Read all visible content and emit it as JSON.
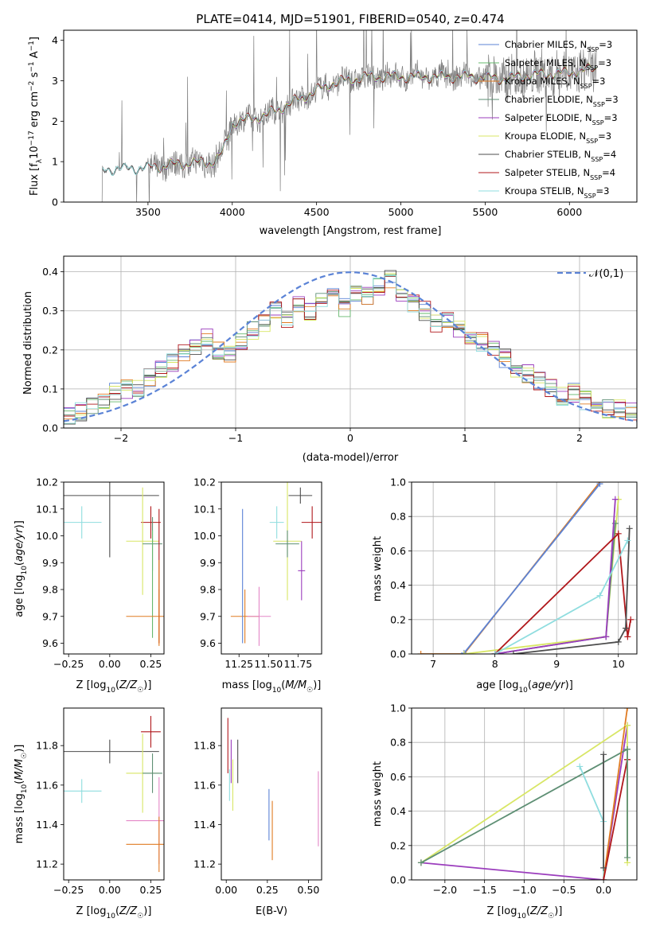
{
  "colors": {
    "Chabrier MILES": "#5b83d6",
    "Salpeter MILES": "#66b86e",
    "Kroupa MILES": "#e07b22",
    "Chabrier ELODIE": "#5e8f74",
    "Salpeter ELODIE": "#9b3dbd",
    "Kroupa ELODIE": "#d8e665",
    "Chabrier STELIB": "#4d4d4d",
    "Salpeter STELIB": "#b0171b",
    "Kroupa STELIB": "#8fdddf",
    "extra": "#e487c7",
    "gauss": "#5b83d6"
  },
  "chart_data": [
    {
      "type": "line",
      "title": "PLATE=0414, MJD=51901, FIBERID=0540, z=0.474",
      "xlabel": "wavelength [Angstrom, rest frame]",
      "ylabel": "Flux [f_λ 10^-17 erg cm^-2 s^-1 A^-1]",
      "xlim": [
        3000,
        6400
      ],
      "ylim": [
        0,
        4.25
      ],
      "xticks": [
        3500,
        4000,
        4500,
        5000,
        5500,
        6000
      ],
      "yticks": [
        0,
        1,
        2,
        3,
        4
      ],
      "legend_position": "upper-right",
      "legend": [
        "Chabrier MILES, N_SSP=3",
        "Salpeter MILES, N_SSP=3",
        "Kroupa MILES, N_SSP=3",
        "Chabrier ELODIE, N_SSP=3",
        "Salpeter ELODIE, N_SSP=3",
        "Kroupa ELODIE, N_SSP=3",
        "Chabrier STELIB, N_SSP=4",
        "Salpeter STELIB, N_SSP=4",
        "Kroupa STELIB, N_SSP=3"
      ],
      "continuum_x": [
        3200,
        3250,
        3300,
        3500,
        3700,
        3900,
        3950,
        4000,
        4200,
        4400,
        4600,
        4800,
        5000,
        5200,
        5400,
        5600,
        5800,
        6000,
        6150
      ],
      "continuum_y": [
        0.7,
        0.8,
        0.82,
        0.85,
        0.95,
        1.0,
        1.3,
        1.95,
        2.15,
        2.55,
        2.95,
        3.1,
        3.1,
        3.1,
        3.1,
        3.05,
        3.15,
        3.2,
        3.3
      ]
    },
    {
      "type": "histogram",
      "xlabel": "(data-model)/error",
      "ylabel": "Normed distribution",
      "xlim": [
        -2.5,
        2.5
      ],
      "ylim": [
        0,
        0.44
      ],
      "xticks": [
        -2,
        -1,
        0,
        1,
        2
      ],
      "yticks": [
        0.0,
        0.1,
        0.2,
        0.3,
        0.4
      ],
      "grid": true,
      "legend_position": "upper-right",
      "legend": [
        "𝒩(0,1)"
      ],
      "bin_edges": [
        -2.5,
        -2.4,
        -2.3,
        -2.2,
        -2.1,
        -2.0,
        -1.9,
        -1.8,
        -1.7,
        -1.6,
        -1.5,
        -1.4,
        -1.3,
        -1.2,
        -1.1,
        -1.0,
        -0.9,
        -0.8,
        -0.7,
        -0.6,
        -0.5,
        -0.4,
        -0.3,
        -0.2,
        -0.1,
        0.0,
        0.1,
        0.2,
        0.3,
        0.4,
        0.5,
        0.6,
        0.7,
        0.8,
        0.9,
        1.0,
        1.1,
        1.2,
        1.3,
        1.4,
        1.5,
        1.6,
        1.7,
        1.8,
        1.9,
        2.0,
        2.1,
        2.2,
        2.3,
        2.4,
        2.5
      ],
      "histogram_base": [
        0.03,
        0.04,
        0.06,
        0.07,
        0.09,
        0.1,
        0.1,
        0.13,
        0.15,
        0.17,
        0.19,
        0.21,
        0.23,
        0.2,
        0.19,
        0.22,
        0.25,
        0.27,
        0.3,
        0.28,
        0.32,
        0.3,
        0.33,
        0.35,
        0.31,
        0.35,
        0.34,
        0.36,
        0.38,
        0.35,
        0.32,
        0.3,
        0.27,
        0.28,
        0.25,
        0.24,
        0.22,
        0.2,
        0.18,
        0.15,
        0.14,
        0.12,
        0.1,
        0.08,
        0.09,
        0.07,
        0.06,
        0.05,
        0.05,
        0.04
      ]
    },
    {
      "type": "scatter",
      "xlabel": "Z [log10(Z/Z☉)]",
      "ylabel": "age  [log10(age/yr)]",
      "xlim": [
        -0.28,
        0.33
      ],
      "ylim": [
        9.56,
        10.2
      ],
      "xticks": [
        -0.25,
        0.0,
        0.25
      ],
      "yticks": [
        9.6,
        9.7,
        9.8,
        9.9,
        10.0,
        10.1,
        10.2
      ],
      "points": [
        {
          "model": "Kroupa STELIB",
          "x": -0.17,
          "y": 10.05,
          "xerr": 0.12,
          "yerr": 0.06
        },
        {
          "model": "Chabrier STELIB",
          "x": 0.0,
          "y": 10.15,
          "xerr": 0.3,
          "yerr": 0.23
        },
        {
          "model": "Salpeter STELIB",
          "x": 0.25,
          "y": 10.05,
          "xerr": 0.06,
          "yerr": 0.06
        },
        {
          "model": "Kroupa ELODIE",
          "x": 0.2,
          "y": 9.98,
          "xerr": 0.1,
          "yerr": 0.2
        },
        {
          "model": "Chabrier ELODIE",
          "x": 0.26,
          "y": 9.97,
          "xerr": 0.06,
          "yerr": 0.1
        },
        {
          "model": "Salpeter MILES",
          "x": 0.26,
          "y": 9.82,
          "xerr": 0.0,
          "yerr": 0.2
        },
        {
          "model": "Kroupa MILES",
          "x": 0.3,
          "y": 9.7,
          "xerr": 0.2,
          "yerr": 0.1
        },
        {
          "model": "Salpeter STELIB",
          "x": 0.3,
          "y": 9.85,
          "xerr": 0.0,
          "yerr": 0.25
        },
        {
          "model": "Kroupa MILES",
          "x": 0.3,
          "y": 9.75,
          "xerr": 0.0,
          "yerr": 0.16
        }
      ]
    },
    {
      "type": "scatter",
      "xlabel": "mass [log10(M/M☉)]",
      "ylabel": "",
      "xlim": [
        11.1,
        11.95
      ],
      "ylim": [
        9.56,
        10.2
      ],
      "xticks": [
        11.25,
        11.5,
        11.75
      ],
      "yticks": [
        9.6,
        9.7,
        9.8,
        9.9,
        10.0,
        10.1,
        10.2
      ],
      "points": [
        {
          "model": "Chabrier STELIB",
          "x": 11.77,
          "y": 10.15,
          "xerr": 0.1,
          "yerr": 0.03
        },
        {
          "model": "Kroupa STELIB",
          "x": 11.57,
          "y": 10.05,
          "xerr": 0.06,
          "yerr": 0.06
        },
        {
          "model": "Salpeter STELIB",
          "x": 11.87,
          "y": 10.05,
          "xerr": 0.09,
          "yerr": 0.06
        },
        {
          "model": "Kroupa ELODIE",
          "x": 11.66,
          "y": 9.98,
          "xerr": 0.12,
          "yerr": 0.22
        },
        {
          "model": "Chabrier ELODIE",
          "x": 11.66,
          "y": 9.97,
          "xerr": 0.1,
          "yerr": 0.05
        },
        {
          "model": "Salpeter ELODIE",
          "x": 11.78,
          "y": 9.87,
          "xerr": 0.03,
          "yerr": 0.11
        },
        {
          "model": "Kroupa MILES",
          "x": 11.3,
          "y": 9.7,
          "xerr": 0.12,
          "yerr": 0.1
        },
        {
          "model": "extra",
          "x": 11.42,
          "y": 9.7,
          "xerr": 0.1,
          "yerr": 0.11
        },
        {
          "model": "Chabrier MILES",
          "x": 11.28,
          "y": 9.85,
          "xerr": 0.0,
          "yerr": 0.25
        }
      ]
    },
    {
      "type": "line",
      "xlabel": "age  [log10(age/yr)]",
      "ylabel": "mass weight",
      "xlim": [
        6.65,
        10.3
      ],
      "ylim": [
        0,
        1
      ],
      "xticks": [
        7,
        8,
        9,
        10
      ],
      "yticks": [
        0.0,
        0.2,
        0.4,
        0.6,
        0.8,
        1.0
      ],
      "grid": true,
      "series": [
        {
          "model": "Kroupa MILES",
          "x": [
            6.8,
            7.5,
            9.7
          ],
          "y": [
            0.0,
            0.0,
            1.0
          ]
        },
        {
          "model": "Chabrier MILES",
          "x": [
            7.5,
            9.7
          ],
          "y": [
            0.005,
            0.99
          ]
        },
        {
          "model": "Kroupa ELODIE",
          "x": [
            7.5,
            9.8,
            10.0,
            10.0
          ],
          "y": [
            0.0,
            0.1,
            0.9,
            0.9
          ]
        },
        {
          "model": "Chabrier ELODIE",
          "x": [
            8.0,
            9.8,
            9.95
          ],
          "y": [
            0.0,
            0.1,
            0.76
          ]
        },
        {
          "model": "Salpeter ELODIE",
          "x": [
            8.0,
            9.8,
            9.95
          ],
          "y": [
            0.0,
            0.1,
            0.9
          ]
        },
        {
          "model": "Salpeter STELIB",
          "x": [
            8.0,
            10.0,
            10.15,
            10.2
          ],
          "y": [
            0.0,
            0.7,
            0.1,
            0.2
          ]
        },
        {
          "model": "Chabrier STELIB",
          "x": [
            8.3,
            10.0,
            10.12,
            10.18
          ],
          "y": [
            0.0,
            0.07,
            0.15,
            0.73
          ]
        },
        {
          "model": "Kroupa STELIB",
          "x": [
            8.0,
            9.7,
            10.15
          ],
          "y": [
            0.0,
            0.34,
            0.66
          ]
        }
      ]
    },
    {
      "type": "scatter",
      "xlabel": "Z [log10(Z/Z☉)]",
      "ylabel": "mass [log10(M/M☉)]",
      "xlim": [
        -0.28,
        0.33
      ],
      "ylim": [
        11.12,
        11.99
      ],
      "xticks": [
        -0.25,
        0.0,
        0.25
      ],
      "yticks": [
        11.2,
        11.4,
        11.6,
        11.8
      ],
      "points": [
        {
          "model": "Salpeter STELIB",
          "x": 0.25,
          "y": 11.87,
          "xerr": 0.06,
          "yerr": 0.08
        },
        {
          "model": "Chabrier STELIB",
          "x": 0.0,
          "y": 11.77,
          "xerr": 0.3,
          "yerr": 0.06
        },
        {
          "model": "Kroupa STELIB",
          "x": -0.17,
          "y": 11.57,
          "xerr": 0.12,
          "yerr": 0.06
        },
        {
          "model": "Kroupa ELODIE",
          "x": 0.2,
          "y": 11.66,
          "xerr": 0.1,
          "yerr": 0.2
        },
        {
          "model": "Chabrier ELODIE",
          "x": 0.26,
          "y": 11.66,
          "xerr": 0.06,
          "yerr": 0.1
        },
        {
          "model": "extra",
          "x": 0.3,
          "y": 11.42,
          "xerr": 0.2,
          "yerr": 0.22
        },
        {
          "model": "Kroupa MILES",
          "x": 0.3,
          "y": 11.3,
          "xerr": 0.2,
          "yerr": 0.14
        }
      ]
    },
    {
      "type": "scatter",
      "xlabel": "E(B-V)",
      "ylabel": "",
      "xlim": [
        -0.03,
        0.58
      ],
      "ylim": [
        11.12,
        11.99
      ],
      "xticks": [
        0.0,
        0.25,
        0.5
      ],
      "yticks": [
        11.2,
        11.4,
        11.6,
        11.8
      ],
      "points": [
        {
          "model": "Salpeter STELIB",
          "x": 0.01,
          "y": 11.8,
          "xerr": 0.0,
          "yerr": 0.14
        },
        {
          "model": "Kroupa STELIB",
          "x": 0.02,
          "y": 11.6,
          "xerr": 0.0,
          "yerr": 0.08
        },
        {
          "model": "Salpeter ELODIE",
          "x": 0.03,
          "y": 11.72,
          "xerr": 0.0,
          "yerr": 0.11
        },
        {
          "model": "Kroupa ELODIE",
          "x": 0.04,
          "y": 11.6,
          "xerr": 0.0,
          "yerr": 0.13
        },
        {
          "model": "Chabrier STELIB",
          "x": 0.07,
          "y": 11.72,
          "xerr": 0.0,
          "yerr": 0.11
        },
        {
          "model": "Chabrier MILES",
          "x": 0.26,
          "y": 11.45,
          "xerr": 0.0,
          "yerr": 0.13
        },
        {
          "model": "Kroupa MILES",
          "x": 0.28,
          "y": 11.37,
          "xerr": 0.0,
          "yerr": 0.15
        },
        {
          "model": "extra",
          "x": 0.56,
          "y": 11.48,
          "xerr": 0.0,
          "yerr": 0.19
        }
      ]
    },
    {
      "type": "line",
      "xlabel": "Z [log10(Z/Z☉)]",
      "ylabel": "mass weight",
      "xlim": [
        -2.42,
        0.42
      ],
      "ylim": [
        0,
        1
      ],
      "xticks": [
        -2.0,
        -1.5,
        -1.0,
        -0.5,
        0.0
      ],
      "yticks": [
        0.0,
        0.2,
        0.4,
        0.6,
        0.8,
        1.0
      ],
      "grid": true,
      "series": [
        {
          "model": "Salpeter ELODIE",
          "x": [
            -2.3,
            0.0,
            0.3
          ],
          "y": [
            0.1,
            0.0,
            0.9
          ]
        },
        {
          "model": "Kroupa ELODIE",
          "x": [
            -2.3,
            0.3
          ],
          "y": [
            0.1,
            0.9
          ]
        },
        {
          "model": "Chabrier ELODIE",
          "x": [
            -2.3,
            0.3
          ],
          "y": [
            0.1,
            0.76
          ]
        },
        {
          "model": "Kroupa STELIB",
          "x": [
            -0.3,
            0.0,
            0.0
          ],
          "y": [
            0.66,
            0.34,
            0.0
          ]
        },
        {
          "model": "Kroupa MILES",
          "x": [
            0.0,
            0.3
          ],
          "y": [
            0.0,
            1.0
          ]
        },
        {
          "model": "Salpeter STELIB",
          "x": [
            0.0,
            0.3,
            0.3
          ],
          "y": [
            0.0,
            0.7,
            0.7
          ]
        },
        {
          "model": "Chabrier STELIB",
          "x": [
            0.0,
            0.0
          ],
          "y": [
            0.07,
            0.73
          ]
        },
        {
          "model": "Kroupa ELODIE",
          "x": [
            0.3,
            0.3
          ],
          "y": [
            0.1,
            0.9
          ]
        },
        {
          "model": "Chabrier ELODIE",
          "x": [
            0.3,
            0.3
          ],
          "y": [
            0.13,
            0.76
          ]
        }
      ]
    }
  ]
}
